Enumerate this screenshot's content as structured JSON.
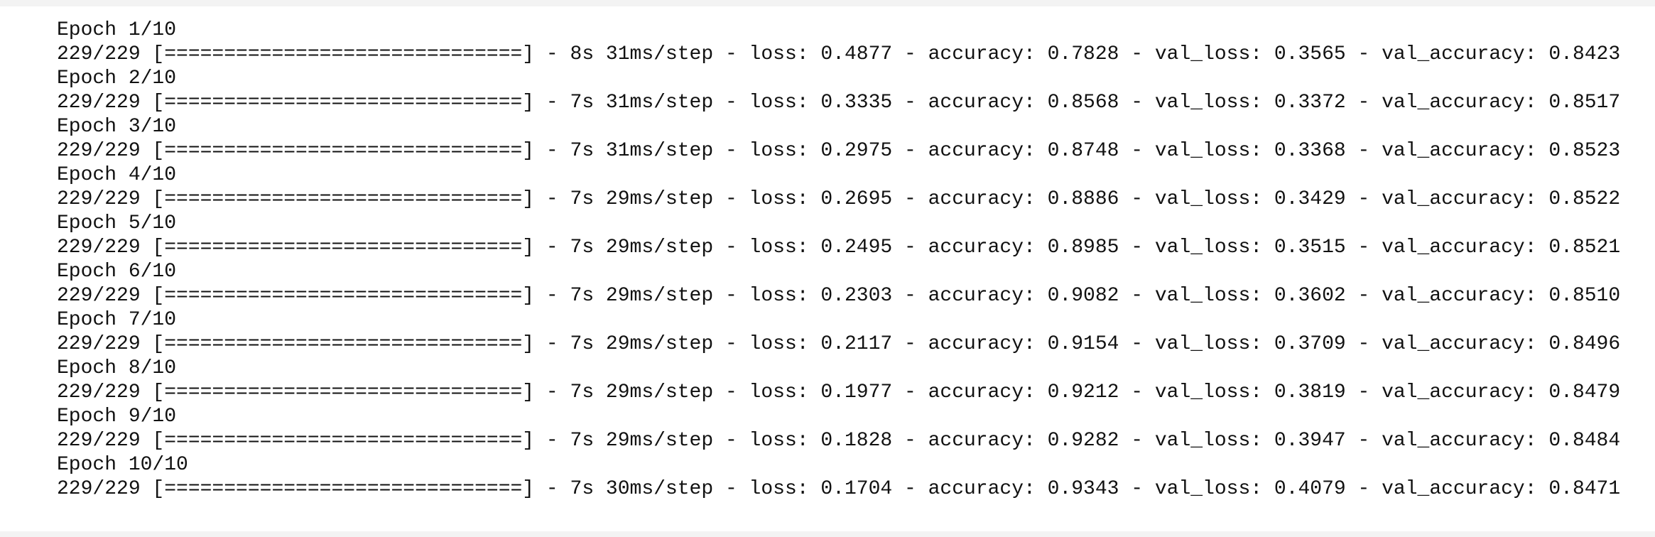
{
  "output": {
    "epochs": [
      {
        "header": "Epoch 1/10",
        "log": "229/229 [==============================] - 8s 31ms/step - loss: 0.4877 - accuracy: 0.7828 - val_loss: 0.3565 - val_accuracy: 0.8423"
      },
      {
        "header": "Epoch 2/10",
        "log": "229/229 [==============================] - 7s 31ms/step - loss: 0.3335 - accuracy: 0.8568 - val_loss: 0.3372 - val_accuracy: 0.8517"
      },
      {
        "header": "Epoch 3/10",
        "log": "229/229 [==============================] - 7s 31ms/step - loss: 0.2975 - accuracy: 0.8748 - val_loss: 0.3368 - val_accuracy: 0.8523"
      },
      {
        "header": "Epoch 4/10",
        "log": "229/229 [==============================] - 7s 29ms/step - loss: 0.2695 - accuracy: 0.8886 - val_loss: 0.3429 - val_accuracy: 0.8522"
      },
      {
        "header": "Epoch 5/10",
        "log": "229/229 [==============================] - 7s 29ms/step - loss: 0.2495 - accuracy: 0.8985 - val_loss: 0.3515 - val_accuracy: 0.8521"
      },
      {
        "header": "Epoch 6/10",
        "log": "229/229 [==============================] - 7s 29ms/step - loss: 0.2303 - accuracy: 0.9082 - val_loss: 0.3602 - val_accuracy: 0.8510"
      },
      {
        "header": "Epoch 7/10",
        "log": "229/229 [==============================] - 7s 29ms/step - loss: 0.2117 - accuracy: 0.9154 - val_loss: 0.3709 - val_accuracy: 0.8496"
      },
      {
        "header": "Epoch 8/10",
        "log": "229/229 [==============================] - 7s 29ms/step - loss: 0.1977 - accuracy: 0.9212 - val_loss: 0.3819 - val_accuracy: 0.8479"
      },
      {
        "header": "Epoch 9/10",
        "log": "229/229 [==============================] - 7s 29ms/step - loss: 0.1828 - accuracy: 0.9282 - val_loss: 0.3947 - val_accuracy: 0.8484"
      },
      {
        "header": "Epoch 10/10",
        "log": "229/229 [==============================] - 7s 30ms/step - loss: 0.1704 - accuracy: 0.9343 - val_loss: 0.4079 - val_accuracy: 0.8471"
      }
    ]
  }
}
